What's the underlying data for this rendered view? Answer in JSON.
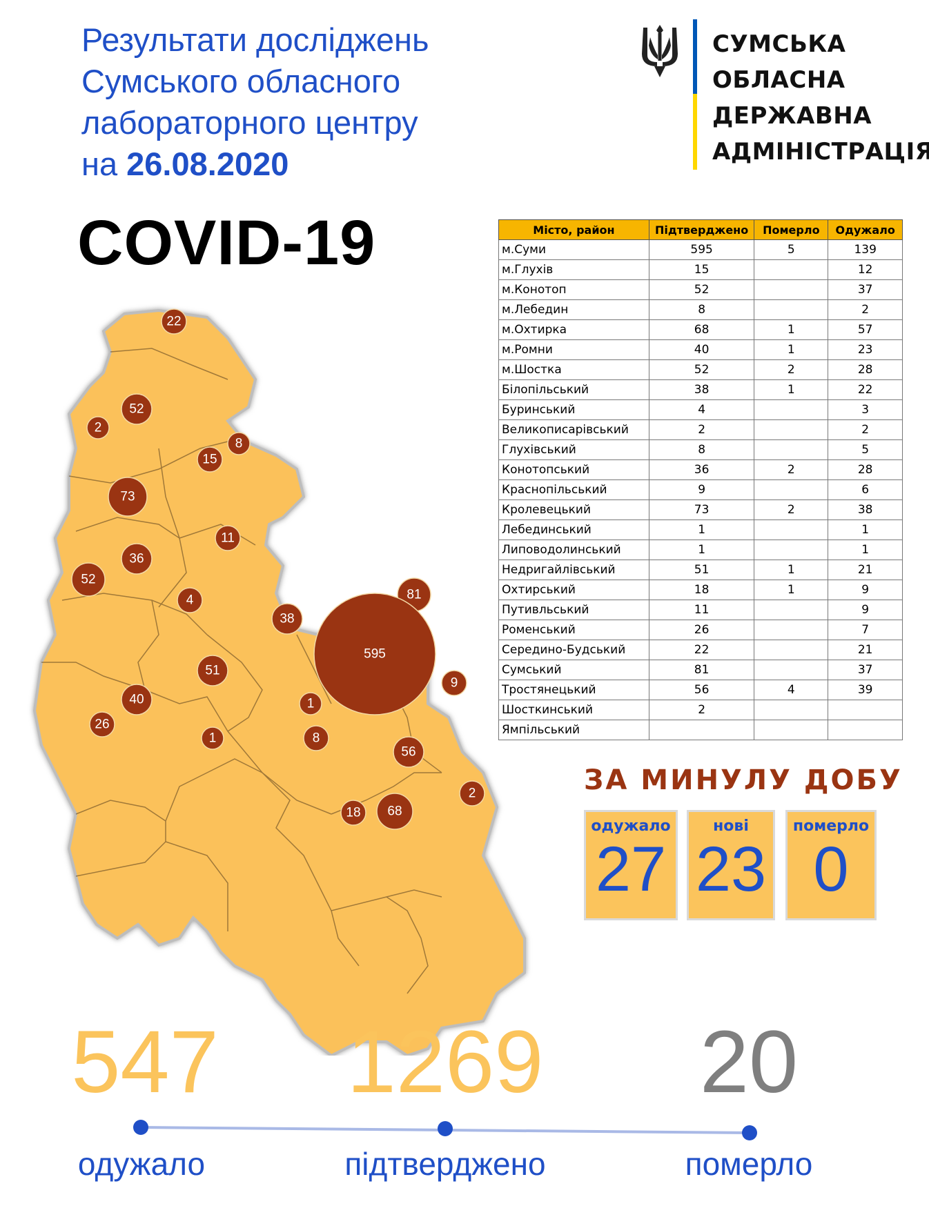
{
  "header": {
    "title_lines": [
      "Результати досліджень",
      "Сумського обласного",
      "лабораторного центру"
    ],
    "date_prefix": "на ",
    "date": "26.08.2020",
    "covid": "COVID-19"
  },
  "logo": {
    "icon": "trident-icon",
    "lines": [
      "СУМСЬКА",
      "ОБЛАСНА",
      "ДЕРЖАВНА",
      "АДМІНІСТРАЦІЯ"
    ],
    "colors": {
      "blue": "#0057b7",
      "yellow": "#ffd700"
    }
  },
  "table": {
    "headers": [
      "Місто, район",
      "Підтверджено",
      "Померло",
      "Одужало"
    ],
    "rows": [
      [
        "м.Суми",
        "595",
        "5",
        "139"
      ],
      [
        "м.Глухів",
        "15",
        "",
        "12"
      ],
      [
        "м.Конотоп",
        "52",
        "",
        "37"
      ],
      [
        "м.Лебедин",
        "8",
        "",
        "2"
      ],
      [
        "м.Охтирка",
        "68",
        "1",
        "57"
      ],
      [
        "м.Ромни",
        "40",
        "1",
        "23"
      ],
      [
        "м.Шостка",
        "52",
        "2",
        "28"
      ],
      [
        "Білопільський",
        "38",
        "1",
        "22"
      ],
      [
        "Буринський",
        "4",
        "",
        "3"
      ],
      [
        "Великописарівський",
        "2",
        "",
        "2"
      ],
      [
        "Глухівський",
        "8",
        "",
        "5"
      ],
      [
        "Конотопський",
        "36",
        "2",
        "28"
      ],
      [
        "Краснопільський",
        "9",
        "",
        "6"
      ],
      [
        "Кролевецький",
        "73",
        "2",
        "38"
      ],
      [
        "Лебединський",
        "1",
        "",
        "1"
      ],
      [
        "Липоводолинський",
        "1",
        "",
        "1"
      ],
      [
        "Недригайлівський",
        "51",
        "1",
        "21"
      ],
      [
        "Охтирський",
        "18",
        "1",
        "9"
      ],
      [
        "Путивльський",
        "11",
        "",
        "9"
      ],
      [
        "Роменський",
        "26",
        "",
        "7"
      ],
      [
        "Середино-Будський",
        "22",
        "",
        "21"
      ],
      [
        "Сумський",
        "81",
        "",
        "37"
      ],
      [
        "Тростянецький",
        "56",
        "4",
        "39"
      ],
      [
        "Шосткинський",
        "2",
        "",
        ""
      ],
      [
        "Ямпільський",
        "",
        "",
        ""
      ]
    ]
  },
  "map": {
    "fill_color": "#fbc15a",
    "bubble_color": "#9a3412",
    "bubbles": [
      "22",
      "52",
      "2",
      "8",
      "15",
      "73",
      "11",
      "36",
      "52",
      "4",
      "38",
      "81",
      "595",
      "51",
      "9",
      "40",
      "1",
      "26",
      "1",
      "8",
      "56",
      "2",
      "18",
      "68"
    ]
  },
  "last_day": {
    "title": "ЗА МИНУЛУ ДОБУ",
    "recovered_label": "одужало",
    "recovered": "27",
    "new_label": "нові",
    "new": "23",
    "died_label": "померло",
    "died": "0"
  },
  "totals": {
    "recovered": "547",
    "recovered_label": "одужало",
    "confirmed": "1269",
    "confirmed_label": "підтверджено",
    "died": "20",
    "died_label": "померло",
    "colors": {
      "recovered": "#fbc45c",
      "confirmed": "#fbc45c",
      "died": "#7f7f7f",
      "timeline": "#a9b9e6",
      "dot": "#1f4fc7"
    }
  }
}
